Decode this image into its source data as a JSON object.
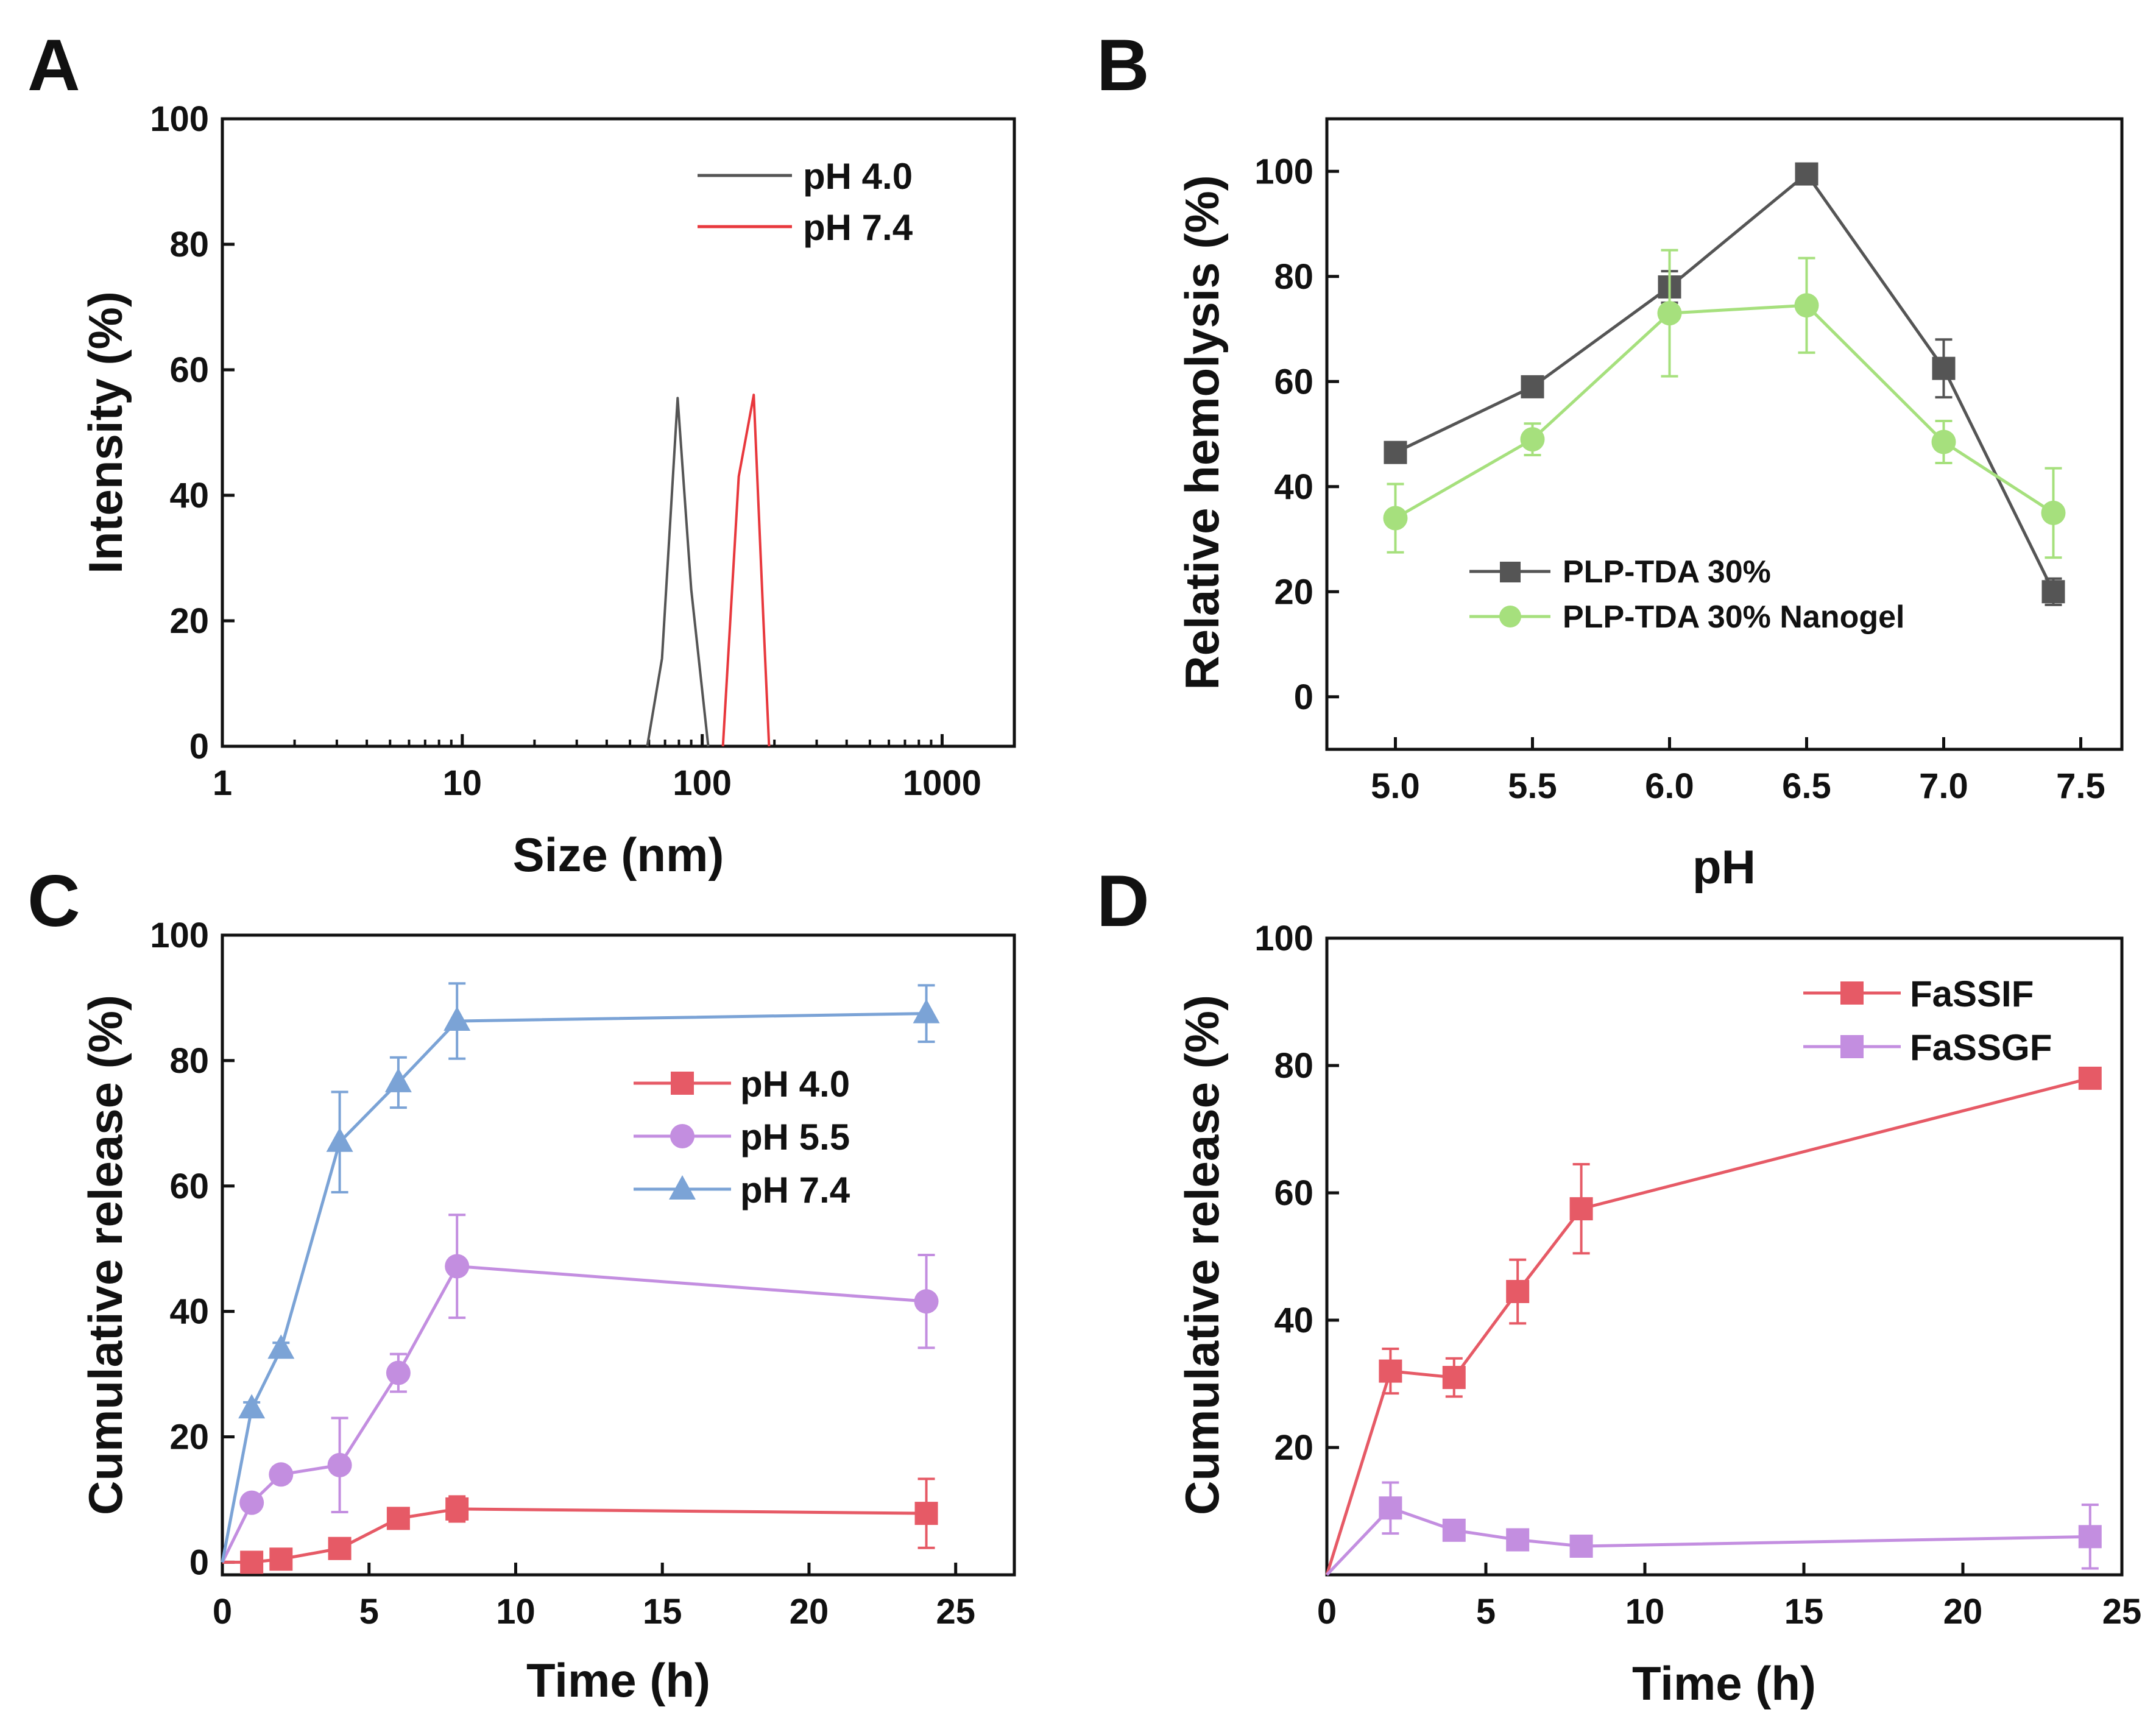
{
  "chart_data": [
    {
      "panel": "A",
      "type": "line",
      "xscale": "log",
      "xlabel": "Size (nm)",
      "ylabel": "Intensity (%)",
      "xlim": [
        1,
        2000
      ],
      "ylim": [
        0,
        100
      ],
      "xticks": [
        1,
        10,
        100,
        1000
      ],
      "xtick_labels": [
        "1",
        "10",
        "100",
        "1000"
      ],
      "yticks": [
        0,
        20,
        40,
        60,
        80,
        100
      ],
      "legend_position": "top-right",
      "series": [
        {
          "name": "pH 4.0",
          "color": "#555555",
          "x": [
            59,
            68,
            79,
            90,
            106
          ],
          "y": [
            0,
            14,
            55.5,
            25,
            0
          ]
        },
        {
          "name": "pH 7.4",
          "color": "#e8383d",
          "x": [
            122,
            142,
            164,
            180,
            190
          ],
          "y": [
            0,
            43,
            56,
            20,
            0
          ]
        }
      ]
    },
    {
      "panel": "B",
      "type": "line",
      "xlabel": "pH",
      "ylabel": "Relative hemolysis (%)",
      "xlim": [
        4.75,
        7.65
      ],
      "ylim": [
        -10,
        110
      ],
      "xticks": [
        5.0,
        5.5,
        6.0,
        6.5,
        7.0,
        7.5
      ],
      "xtick_labels": [
        "5.0",
        "5.5",
        "6.0",
        "6.5",
        "7.0",
        "7.5"
      ],
      "yticks": [
        0,
        20,
        40,
        60,
        80,
        100
      ],
      "legend_position": "bottom-center",
      "series": [
        {
          "name": "PLP-TDA 30%",
          "color": "#555555",
          "marker": "square",
          "x": [
            5.0,
            5.5,
            6.0,
            6.5,
            7.0,
            7.4
          ],
          "y": [
            46.5,
            59,
            78,
            99.5,
            62.5,
            20
          ],
          "err": [
            1.5,
            1.5,
            3,
            1,
            5.5,
            2.5
          ]
        },
        {
          "name": "PLP-TDA 30% Nanogel",
          "color": "#a6e07d",
          "marker": "circle",
          "x": [
            5.0,
            5.5,
            6.0,
            6.5,
            7.0,
            7.4
          ],
          "y": [
            34,
            49,
            73,
            74.5,
            48.5,
            35
          ],
          "err": [
            6.5,
            3,
            12,
            9,
            4,
            8.5
          ]
        }
      ]
    },
    {
      "panel": "C",
      "type": "line",
      "xlabel": "Time (h)",
      "ylabel": "Cumulative release (%)",
      "xlim": [
        0,
        27
      ],
      "ylim": [
        -2,
        100
      ],
      "xticks": [
        0,
        5,
        10,
        15,
        20,
        25
      ],
      "xtick_labels": [
        "0",
        "5",
        "10",
        "15",
        "20",
        "25"
      ],
      "yticks": [
        0,
        20,
        40,
        60,
        80,
        100
      ],
      "legend_position": "center-right",
      "series": [
        {
          "name": "pH 4.0",
          "color": "#e65a66",
          "marker": "square",
          "x": [
            0,
            1,
            2,
            4,
            6,
            8,
            24
          ],
          "y": [
            0,
            0,
            0.5,
            2.2,
            7,
            8.5,
            7.8
          ],
          "err": [
            0,
            0.5,
            0.5,
            1,
            1.5,
            2,
            5.5
          ]
        },
        {
          "name": "pH 5.5",
          "color": "#c38ee0",
          "marker": "circle",
          "x": [
            0,
            1,
            2,
            4,
            6,
            8,
            24
          ],
          "y": [
            0,
            9.5,
            14,
            15.5,
            30.2,
            47.2,
            41.6
          ],
          "err": [
            0,
            1,
            1,
            7.5,
            3,
            8.2,
            7.4
          ]
        },
        {
          "name": "pH 7.4",
          "color": "#7ba3d6",
          "marker": "triangle",
          "x": [
            0,
            1,
            2,
            4,
            6,
            8,
            24
          ],
          "y": [
            0,
            24.5,
            34,
            67,
            76.5,
            86.3,
            87.5
          ],
          "err": [
            0,
            1,
            1,
            8,
            4,
            6,
            4.5
          ]
        }
      ]
    },
    {
      "panel": "D",
      "type": "line",
      "xlabel": "Time (h)",
      "ylabel": "Cumulative release (%)",
      "xlim": [
        0,
        25
      ],
      "ylim": [
        0,
        100
      ],
      "xticks": [
        0,
        5,
        10,
        15,
        20,
        25
      ],
      "xtick_labels": [
        "0",
        "5",
        "10",
        "15",
        "20",
        "25"
      ],
      "yticks": [
        20,
        40,
        60,
        80,
        100
      ],
      "legend_position": "top-right",
      "series": [
        {
          "name": "FaSSIF",
          "color": "#e65a66",
          "marker": "square",
          "x": [
            0,
            2,
            4,
            6,
            8,
            24
          ],
          "y": [
            0,
            32,
            31,
            44.5,
            57.5,
            78
          ],
          "err": [
            0,
            3.5,
            3,
            5,
            7,
            1.5
          ]
        },
        {
          "name": "FaSSGF",
          "color": "#c38ee0",
          "marker": "square",
          "x": [
            0,
            2,
            4,
            6,
            8,
            24
          ],
          "y": [
            0,
            10.5,
            7,
            5.5,
            4.5,
            6
          ],
          "err": [
            0,
            4,
            1,
            1,
            1,
            5
          ]
        }
      ]
    }
  ]
}
